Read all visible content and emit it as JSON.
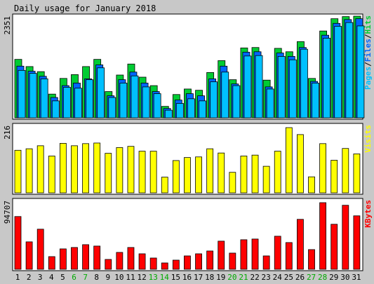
{
  "chart_data": {
    "type": "bar",
    "title": "Daily usage for January 2018",
    "categories": [
      "1",
      "2",
      "3",
      "4",
      "5",
      "6",
      "7",
      "8",
      "9",
      "10",
      "11",
      "12",
      "13",
      "14",
      "15",
      "16",
      "17",
      "18",
      "19",
      "20",
      "21",
      "22",
      "23",
      "24",
      "25",
      "26",
      "27",
      "28",
      "29",
      "30",
      "31"
    ],
    "weekend_days": [
      "6",
      "7",
      "13",
      "14",
      "20",
      "21",
      "27",
      "28"
    ],
    "colors": {
      "background": "#C8C8C8",
      "plot_background": "#FFFFFF",
      "hits": "#00CC33",
      "files": "#0066FF",
      "pages": "#00C0FF",
      "visits": "#FFFF00",
      "kbytes": "#FF0000",
      "weekday_label": "#000000",
      "weekend_label": "#00AA00"
    },
    "panels": [
      {
        "name": "hits-files-pages",
        "max_label": "2351",
        "ylim": [
          0,
          2351
        ],
        "legend": [
          {
            "label": "Pages",
            "color": "#00C0FF"
          },
          {
            "label": "/",
            "color": "#000000"
          },
          {
            "label": "Files",
            "color": "#0066FF"
          },
          {
            "label": "/",
            "color": "#000000"
          },
          {
            "label": "Hits",
            "color": "#00CC33"
          }
        ],
        "series": [
          {
            "name": "Hits",
            "values": [
              1380,
              1210,
              1090,
              560,
              930,
              1020,
              1210,
              1380,
              620,
              1010,
              1270,
              960,
              760,
              270,
              550,
              680,
              650,
              1070,
              1350,
              900,
              1650,
              1660,
              890,
              1640,
              1560,
              1800,
              930,
              2050,
              2340,
              2390,
              2400
            ]
          },
          {
            "name": "Files",
            "values": [
              1220,
              1100,
              980,
              480,
              760,
              820,
              920,
              1250,
              520,
              900,
              1080,
              820,
              620,
              220,
              420,
              570,
              520,
              920,
              1220,
              800,
              1550,
              1560,
              730,
              1530,
              1450,
              1660,
              860,
              1950,
              2230,
              2320,
              2340
            ]
          },
          {
            "name": "Pages",
            "values": [
              1120,
              1050,
              920,
              400,
              720,
              700,
              900,
              1180,
              480,
              820,
              990,
              730,
              570,
              180,
              340,
              450,
              400,
              850,
              1080,
              760,
              1460,
              1470,
              680,
              1450,
              1370,
              1620,
              820,
              1880,
              2160,
              2250,
              2170
            ]
          }
        ]
      },
      {
        "name": "visits",
        "max_label": "216",
        "ylim": [
          0,
          216
        ],
        "legend": [
          {
            "label": "Visits",
            "color": "#FFFF00"
          }
        ],
        "series": [
          {
            "name": "Visits",
            "values": [
              141,
              146,
              156,
              122,
              164,
              156,
              163,
              165,
              131,
              150,
              154,
              138,
              138,
              52,
              107,
              117,
              119,
              146,
              132,
              68,
              122,
              125,
              88,
              138,
              216,
              193,
              53,
              163,
              108,
              147,
              129
            ]
          }
        ]
      },
      {
        "name": "kbytes",
        "max_label": "94707",
        "ylim": [
          0,
          94707
        ],
        "legend": [
          {
            "label": "KBytes",
            "color": "#FF0000"
          }
        ],
        "series": [
          {
            "name": "KBytes",
            "values": [
              75000,
              39000,
              57000,
              18000,
              29000,
              31000,
              35000,
              33000,
              14000,
              24000,
              31000,
              22000,
              16000,
              9000,
              13000,
              19000,
              22000,
              26000,
              40000,
              23000,
              42000,
              43000,
              19000,
              47000,
              38000,
              71000,
              28000,
              96000,
              64000,
              91000,
              76000
            ]
          }
        ]
      }
    ]
  }
}
